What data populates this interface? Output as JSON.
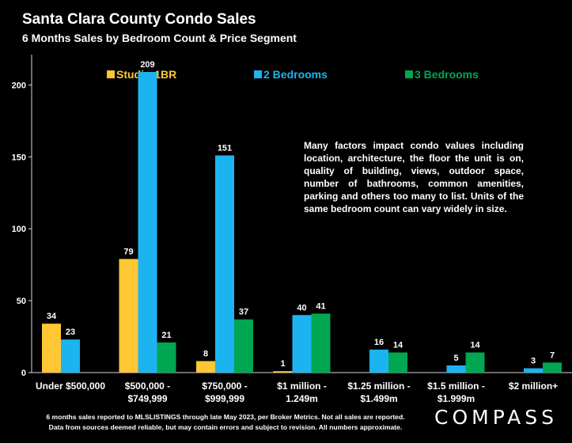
{
  "header": {
    "title": "Santa Clara County Condo  Sales",
    "subtitle": "6 Months Sales by Bedroom Count & Price Segment"
  },
  "annotation": "Many factors impact condo values including location, architecture, the floor the unit is on, quality of building, views, outdoor space, number of bathrooms, common amenities, parking and others too many to list. Units of the same bedroom count can vary widely in size.",
  "footnote": {
    "line1": "6 months sales reported to MLSLISTINGS through late May 2023, per Broker Metrics. Not all sales are reported.",
    "line2": "Data from sources deemed reliable, but may contain errors and subject to revision. All numbers approximate."
  },
  "brand": "COMPASS",
  "colors": {
    "background": "#000000",
    "studio": "#FFC733",
    "two_bed": "#1CB4F0",
    "three_bed": "#00A651"
  },
  "chart_data": {
    "type": "bar",
    "categories": [
      [
        "Under $500,000"
      ],
      [
        "$500,000 -",
        "$749,999"
      ],
      [
        "$750,000 -",
        "$999,999"
      ],
      [
        "$1 million -",
        "1.249m"
      ],
      [
        "$1.25 million -",
        "$1.499m"
      ],
      [
        "$1.5 million -",
        "$1.999m"
      ],
      [
        "$2 million+"
      ]
    ],
    "series": [
      {
        "name": "Studio-1BR",
        "color": "#FFC733",
        "values": [
          34,
          79,
          8,
          1,
          null,
          null,
          null
        ]
      },
      {
        "name": "2 Bedrooms",
        "color": "#1CB4F0",
        "values": [
          23,
          209,
          151,
          40,
          16,
          5,
          3
        ]
      },
      {
        "name": "3 Bedrooms",
        "color": "#00A651",
        "values": [
          null,
          21,
          37,
          41,
          14,
          14,
          7
        ]
      }
    ],
    "yticks": [
      0,
      50,
      100,
      150,
      200
    ],
    "ylim": [
      0,
      220
    ],
    "grid": false,
    "legend": "top"
  }
}
